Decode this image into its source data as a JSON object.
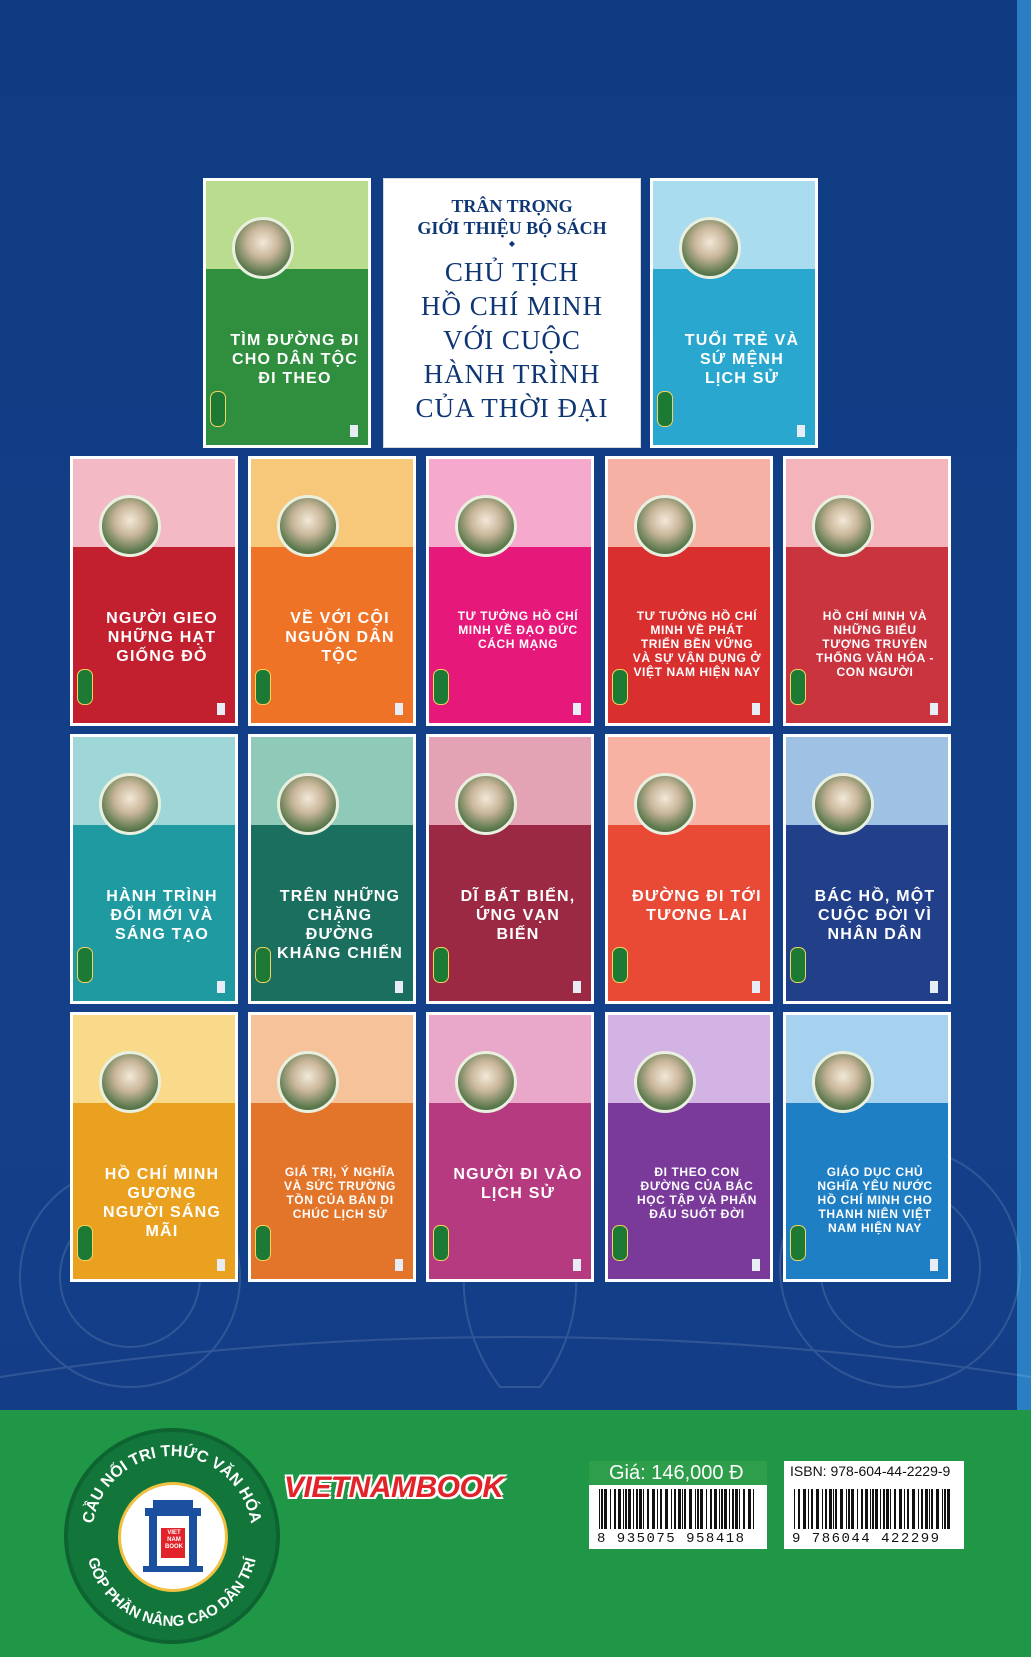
{
  "intro": {
    "heading_line1": "TRÂN TRỌNG",
    "heading_line2": "GIỚI THIỆU BỘ SÁCH",
    "series_line1": "CHỦ TỊCH",
    "series_line2": "HỒ CHÍ MINH",
    "series_line3": "VỚI CUỘC",
    "series_line4": "HÀNH TRÌNH",
    "series_line5": "CỦA THỜI ĐẠI"
  },
  "books": [
    {
      "title": "TÌM ĐƯỜNG ĐI CHO DÂN TỘC ĐI THEO",
      "main": "#2f8f3e",
      "top": "#b9dc8e"
    },
    {
      "title": "TUỔI TRẺ VÀ SỨ MỆNH LỊCH SỬ",
      "main": "#2aa7cf",
      "top": "#a9dcee"
    },
    {
      "title": "NGƯỜI GIEO NHỮNG HẠT GIỐNG ĐỎ",
      "main": "#c3202f",
      "top": "#f3b9c4"
    },
    {
      "title": "VỀ VỚI CỘI NGUỒN DÂN TỘC",
      "main": "#ef7326",
      "top": "#f7c77a"
    },
    {
      "title": "TƯ TƯỞNG HỒ CHÍ MINH VỀ ĐẠO ĐỨC CÁCH MẠNG",
      "main": "#e6197a",
      "top": "#f5a9cc"
    },
    {
      "title": "TƯ TƯỞNG HỒ CHÍ MINH VỀ PHÁT TRIỂN BỀN VỮNG VÀ SỰ VẬN DỤNG Ở VIỆT NAM HIỆN NAY",
      "main": "#d92f2f",
      "top": "#f6b1a5"
    },
    {
      "title": "HỒ CHÍ MINH VÀ NHỮNG BIỂU TƯỢNG TRUYỀN THỐNG VĂN HÓA - CON NGƯỜI",
      "main": "#c9343f",
      "top": "#f3b4bc"
    },
    {
      "title": "HÀNH TRÌNH ĐỔI MỚI VÀ SÁNG TẠO",
      "main": "#1f9aa1",
      "top": "#9fd7d8"
    },
    {
      "title": "TRÊN NHỮNG CHẶNG ĐƯỜNG KHÁNG CHIẾN",
      "main": "#1b6f5e",
      "top": "#8fc9b8"
    },
    {
      "title": "DĨ BẤT BIẾN, ỨNG VẠN BIẾN",
      "main": "#9b2944",
      "top": "#e4a3b4"
    },
    {
      "title": "ĐƯỜNG ĐI TỚI TƯƠNG LAI",
      "main": "#e94a35",
      "top": "#f8b2a4"
    },
    {
      "title": "BÁC HỒ, MỘT CUỘC ĐỜI VÌ NHÂN DÂN",
      "main": "#223f8a",
      "top": "#9fc1e4"
    },
    {
      "title": "HỒ CHÍ MINH GƯƠNG NGƯỜI SÁNG MÃI",
      "main": "#eaa11f",
      "top": "#f8da8a"
    },
    {
      "title": "GIÁ TRỊ, Ý NGHĨA VÀ SỨC TRƯỜNG TỒN CỦA BẢN DI CHÚC LỊCH SỬ",
      "main": "#e3752a",
      "top": "#f6c29a"
    },
    {
      "title": "NGƯỜI ĐI VÀO LỊCH SỬ",
      "main": "#b53a80",
      "top": "#e9a8c9"
    },
    {
      "title": "ĐI THEO CON ĐƯỜNG CỦA BÁC HỌC TẬP VÀ PHẤN ĐẤU SUỐT ĐỜI",
      "main": "#7a3a9a",
      "top": "#d3b2e4"
    },
    {
      "title": "GIÁO DỤC CHỦ NGHĨA YÊU NƯỚC HỒ CHÍ MINH CHO THANH NIÊN VIỆT NAM HIỆN NAY",
      "main": "#1e7fc4",
      "top": "#a6d2f0"
    }
  ],
  "footer": {
    "seal_top": "CẦU NỐI TRI THỨC VĂN HÓA",
    "seal_bottom": "GÓP PHẦN NÂNG CAO DÂN TRÍ",
    "seal_center": "VIET NAM BOOK",
    "brand": "VIETNAMBOOK",
    "price": "Giá: 146,000 Đ",
    "barcode_left": "8 935075 958418",
    "isbn": "ISBN: 978-604-44-2229-9",
    "barcode_right": "9 786044 422299"
  }
}
